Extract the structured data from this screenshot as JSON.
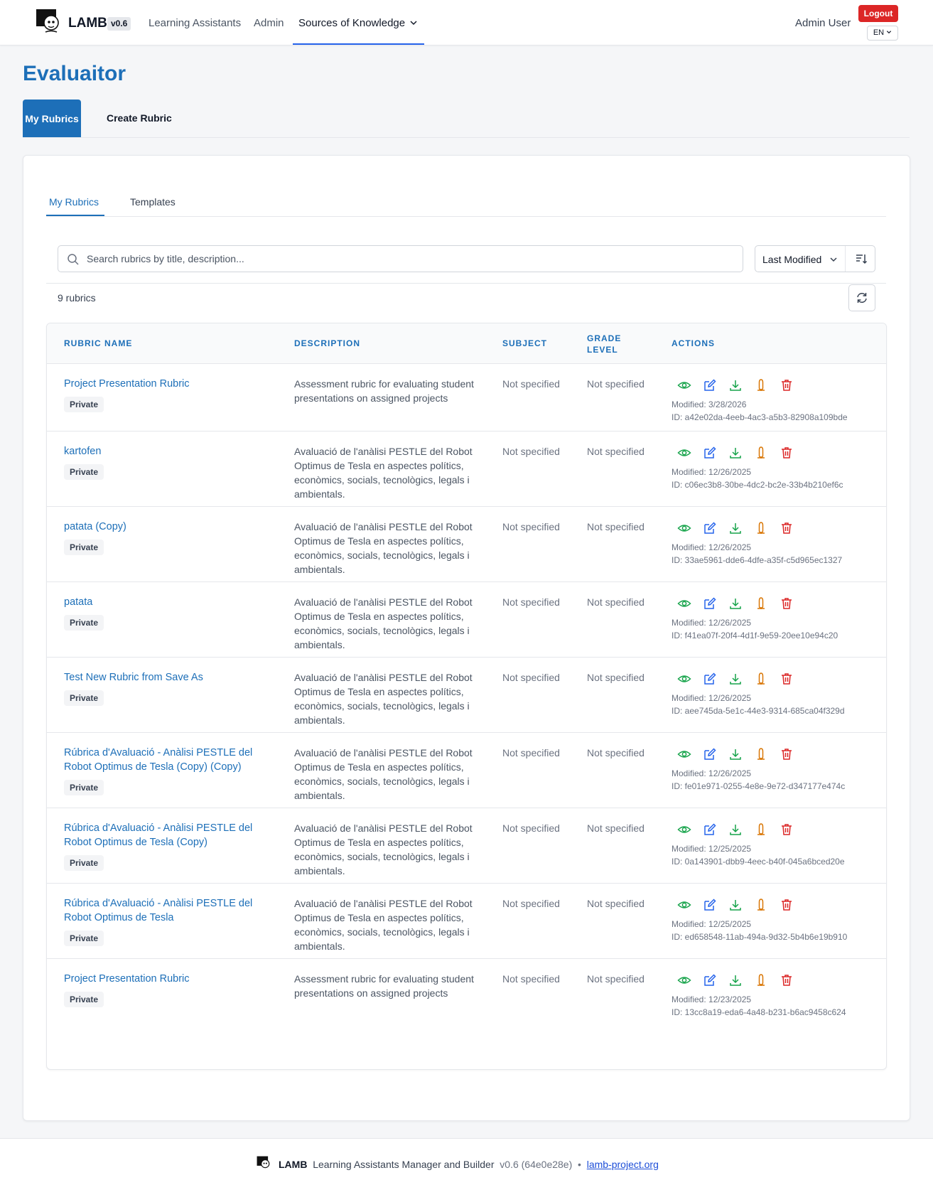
{
  "header": {
    "brand": "LAMB",
    "version": "v0.6",
    "nav": [
      "Learning Assistants",
      "Admin",
      "Sources of Knowledge"
    ],
    "user": "Admin User",
    "logout": "Logout",
    "lang": "EN"
  },
  "page": {
    "title": "Evaluaitor",
    "main_tabs": [
      "My Rubrics",
      "Create Rubric"
    ],
    "sub_tabs": [
      "My Rubrics",
      "Templates"
    ]
  },
  "toolbar": {
    "search_placeholder": "Search rubrics by title, description...",
    "sort_label": "Last Modified",
    "count": "9 rubrics"
  },
  "table": {
    "headers": [
      "RUBRIC NAME",
      "DESCRIPTION",
      "SUBJECT",
      "GRADE",
      "LEVEL",
      "ACTIONS"
    ],
    "rows": [
      {
        "name": "Project Presentation Rubric",
        "badge": "Private",
        "description": "Assessment rubric for evaluating student presentations on assigned projects",
        "subject": "Not specified",
        "grade": "Not specified",
        "modified": "Modified: 3/28/2026",
        "id": "ID: a42e02da-4eeb-4ac3-a5b3-82908a109bde"
      },
      {
        "name": "kartofen",
        "badge": "Private",
        "description": "Avaluació de l'anàlisi PESTLE del Robot Optimus de Tesla en aspectes polítics, econòmics, socials, tecnològics, legals i ambientals.",
        "subject": "Not specified",
        "grade": "Not specified",
        "modified": "Modified: 12/26/2025",
        "id": "ID: c06ec3b8-30be-4dc2-bc2e-33b4b210ef6c"
      },
      {
        "name": "patata (Copy)",
        "badge": "Private",
        "description": "Avaluació de l'anàlisi PESTLE del Robot Optimus de Tesla en aspectes polítics, econòmics, socials, tecnològics, legals i ambientals.",
        "subject": "Not specified",
        "grade": "Not specified",
        "modified": "Modified: 12/26/2025",
        "id": "ID: 33ae5961-dde6-4dfe-a35f-c5d965ec1327"
      },
      {
        "name": "patata",
        "badge": "Private",
        "description": "Avaluació de l'anàlisi PESTLE del Robot Optimus de Tesla en aspectes polítics, econòmics, socials, tecnològics, legals i ambientals.",
        "subject": "Not specified",
        "grade": "Not specified",
        "modified": "Modified: 12/26/2025",
        "id": "ID: f41ea07f-20f4-4d1f-9e59-20ee10e94c20"
      },
      {
        "name": "Test New Rubric from Save As",
        "badge": "Private",
        "description": "Avaluació de l'anàlisi PESTLE del Robot Optimus de Tesla en aspectes polítics, econòmics, socials, tecnològics, legals i ambientals.",
        "subject": "Not specified",
        "grade": "Not specified",
        "modified": "Modified: 12/26/2025",
        "id": "ID: aee745da-5e1c-44e3-9314-685ca04f329d"
      },
      {
        "name": "Rúbrica d'Avaluació - Anàlisi PESTLE del Robot Optimus de Tesla (Copy) (Copy)",
        "badge": "Private",
        "description": "Avaluació de l'anàlisi PESTLE del Robot Optimus de Tesla en aspectes polítics, econòmics, socials, tecnològics, legals i ambientals.",
        "subject": "Not specified",
        "grade": "Not specified",
        "modified": "Modified: 12/26/2025",
        "id": "ID: fe01e971-0255-4e8e-9e72-d347177e474c"
      },
      {
        "name": "Rúbrica d'Avaluació - Anàlisi PESTLE del Robot Optimus de Tesla (Copy)",
        "badge": "Private",
        "description": "Avaluació de l'anàlisi PESTLE del Robot Optimus de Tesla en aspectes polítics, econòmics, socials, tecnològics, legals i ambientals.",
        "subject": "Not specified",
        "grade": "Not specified",
        "modified": "Modified: 12/25/2025",
        "id": "ID: 0a143901-dbb9-4eec-b40f-045a6bced20e"
      },
      {
        "name": "Rúbrica d'Avaluació - Anàlisi PESTLE del Robot Optimus de Tesla",
        "badge": "Private",
        "description": "Avaluació de l'anàlisi PESTLE del Robot Optimus de Tesla en aspectes polítics, econòmics, socials, tecnològics, legals i ambientals.",
        "subject": "Not specified",
        "grade": "Not specified",
        "modified": "Modified: 12/25/2025",
        "id": "ID: ed658548-11ab-494a-9d32-5b4b6e19b910"
      },
      {
        "name": "Project Presentation Rubric",
        "badge": "Private",
        "description": "Assessment rubric for evaluating student presentations on assigned projects",
        "subject": "Not specified",
        "grade": "Not specified",
        "modified": "Modified: 12/23/2025",
        "id": "ID: 13cc8a19-eda6-4a48-b231-b6ac9458c624"
      }
    ],
    "action_icons": [
      "eye-icon",
      "edit-icon",
      "download-icon",
      "ai-icon",
      "trash-icon"
    ]
  },
  "footer": {
    "brand": "LAMB",
    "tagline": "Learning Assistants Manager and Builder",
    "version": "v0.6 (64e0e28e)",
    "separator": "•",
    "link": "lamb-project.org"
  },
  "colors": {
    "accent": "#1d6fb8",
    "danger": "#dc2626",
    "view": "#16a34a",
    "edit": "#2563eb",
    "ai": "#d97706"
  }
}
